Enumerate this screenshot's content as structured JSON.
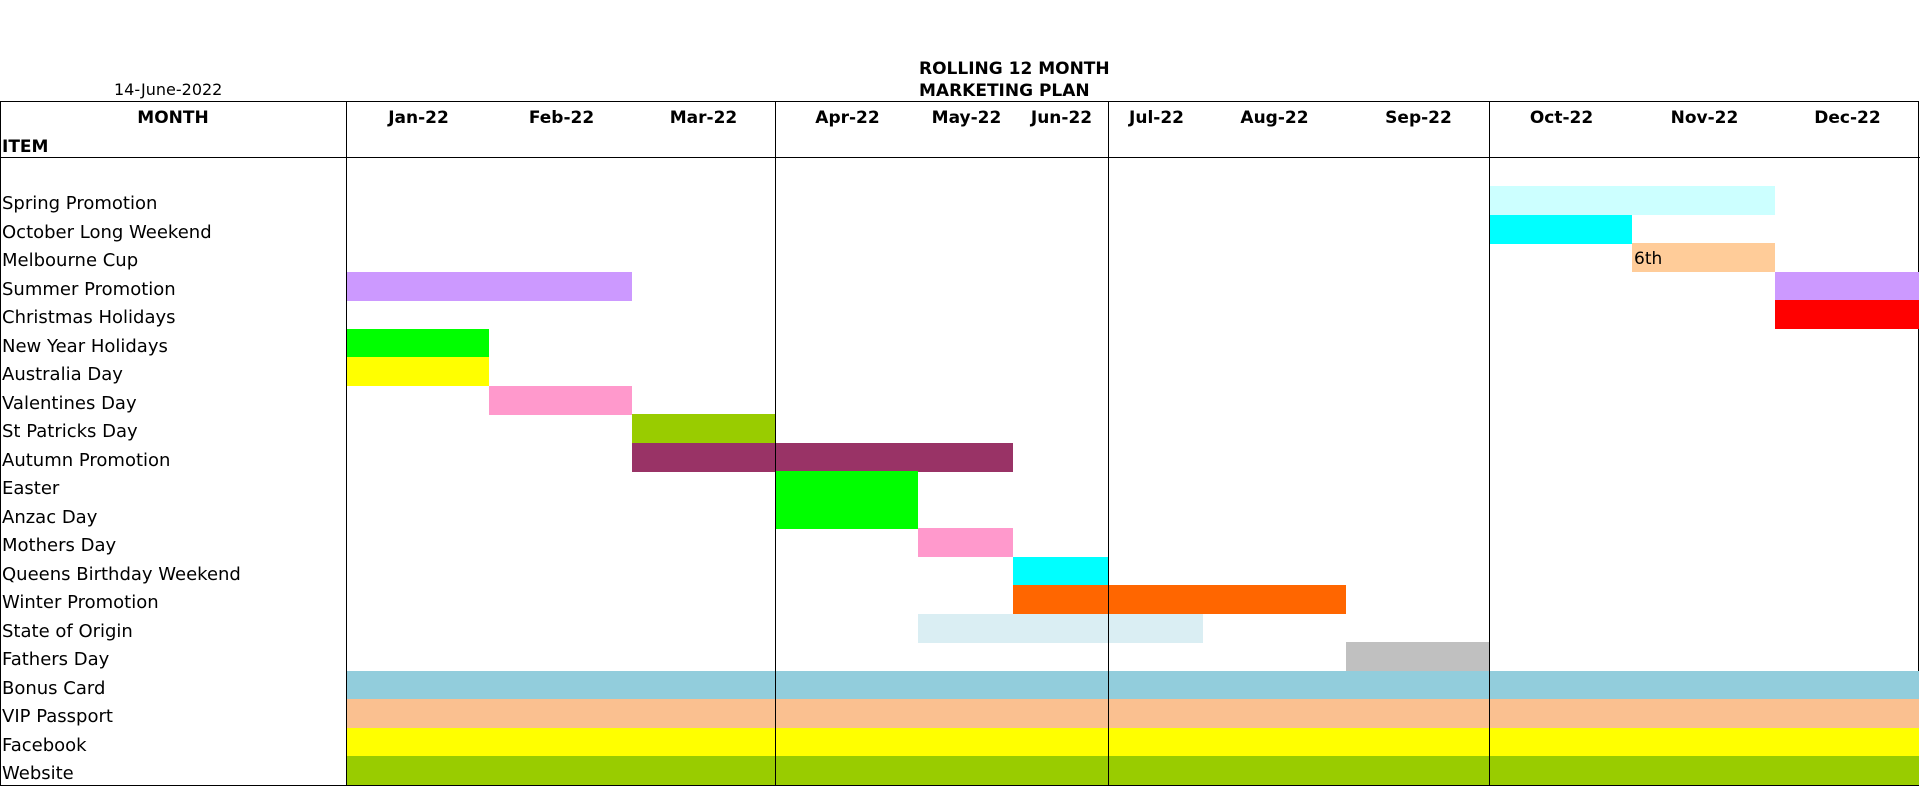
{
  "header": {
    "date": "14-June-2022",
    "title_line1": "ROLLING 12 MONTH",
    "title_line2": "MARKETING PLAN"
  },
  "columns": {
    "month_header": "MONTH",
    "item_header": "ITEM",
    "months": [
      "Jan-22",
      "Feb-22",
      "Mar-22",
      "Apr-22",
      "May-22",
      "Jun-22",
      "Jul-22",
      "Aug-22",
      "Sep-22",
      "Oct-22",
      "Nov-22",
      "Dec-22"
    ]
  },
  "items": [
    {
      "name": "Spring Promotion",
      "bars": [
        {
          "start": 9,
          "end": 11,
          "color": "#ccffff"
        }
      ]
    },
    {
      "name": "October Long Weekend",
      "bars": [
        {
          "start": 9,
          "end": 10,
          "color": "#00ffff"
        }
      ]
    },
    {
      "name": "Melbourne Cup",
      "bars": [
        {
          "start": 10,
          "end": 11,
          "color": "#ffcc99",
          "label": "6th"
        }
      ]
    },
    {
      "name": "Summer Promotion",
      "bars": [
        {
          "start": 0,
          "end": 2,
          "color": "#cc99ff"
        },
        {
          "start": 11,
          "end": 12,
          "color": "#cc99ff"
        }
      ]
    },
    {
      "name": "Christmas Holidays",
      "bars": [
        {
          "start": 11,
          "end": 12,
          "color": "#ff0000"
        }
      ]
    },
    {
      "name": "New Year Holidays",
      "bars": [
        {
          "start": 0,
          "end": 1,
          "color": "#00ff00"
        }
      ]
    },
    {
      "name": "Australia Day",
      "bars": [
        {
          "start": 0,
          "end": 1,
          "color": "#ffff00"
        }
      ]
    },
    {
      "name": "Valentines Day",
      "bars": [
        {
          "start": 1,
          "end": 2,
          "color": "#ff99cc"
        }
      ]
    },
    {
      "name": "St Patricks Day",
      "bars": [
        {
          "start": 2,
          "end": 3,
          "color": "#99cc00"
        }
      ]
    },
    {
      "name": "Autumn Promotion",
      "bars": [
        {
          "start": 2,
          "end": 5,
          "color": "#993366"
        }
      ]
    },
    {
      "name": "Easter",
      "bars": [
        {
          "start": 3,
          "end": 4,
          "color": "#00ff00"
        }
      ]
    },
    {
      "name": "Anzac Day",
      "bars": [
        {
          "start": 3,
          "end": 4,
          "color": "#00ff00"
        }
      ]
    },
    {
      "name": "Mothers Day",
      "bars": [
        {
          "start": 4,
          "end": 5,
          "color": "#ff99cc"
        }
      ]
    },
    {
      "name": "Queens Birthday Weekend",
      "bars": [
        {
          "start": 5,
          "end": 6,
          "color": "#00ffff"
        }
      ]
    },
    {
      "name": "Winter Promotion",
      "bars": [
        {
          "start": 5,
          "end": 8,
          "color": "#ff6600"
        }
      ]
    },
    {
      "name": "State of Origin",
      "bars": [
        {
          "start": 4,
          "end": 7,
          "color": "#daeef3"
        }
      ]
    },
    {
      "name": "Fathers Day",
      "bars": [
        {
          "start": 8,
          "end": 9,
          "color": "#c0c0c0"
        }
      ]
    },
    {
      "name": "Bonus Card",
      "bars": [
        {
          "start": 0,
          "end": 12,
          "color": "#92cddc"
        }
      ]
    },
    {
      "name": "VIP Passport",
      "bars": [
        {
          "start": 0,
          "end": 12,
          "color": "#fac090"
        }
      ]
    },
    {
      "name": "Facebook",
      "bars": [
        {
          "start": 0,
          "end": 12,
          "color": "#ffff00"
        }
      ]
    },
    {
      "name": "Website",
      "bars": [
        {
          "start": 0,
          "end": 12,
          "color": "#99cc00"
        }
      ]
    }
  ]
}
